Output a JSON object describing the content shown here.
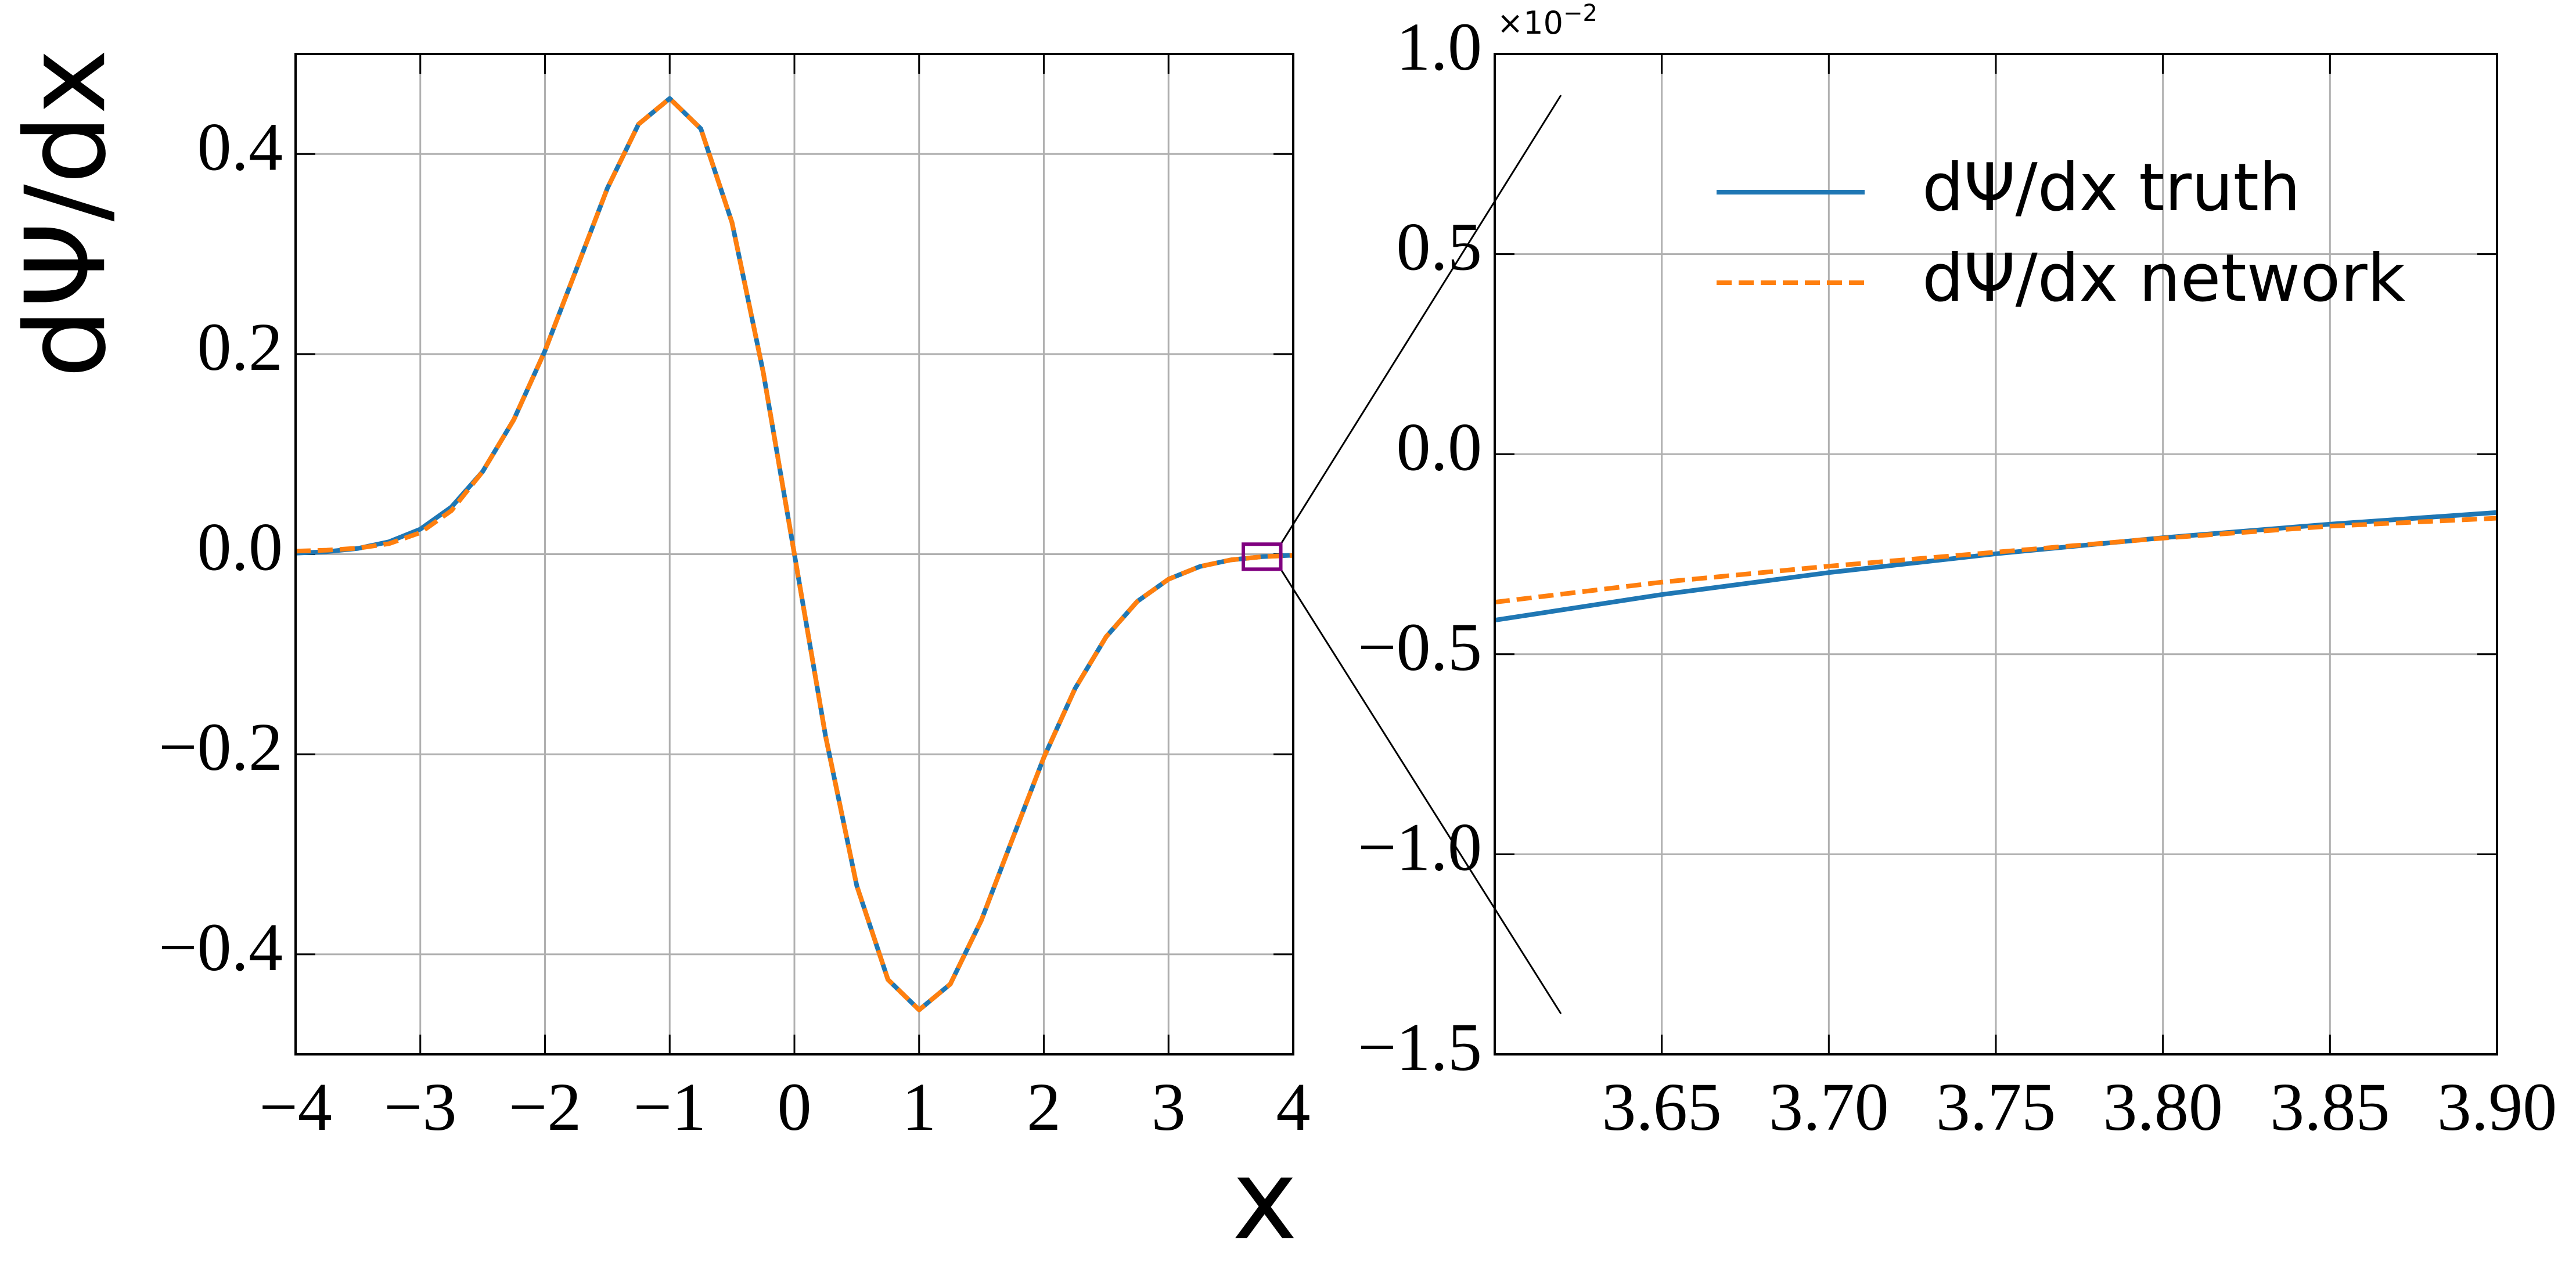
{
  "chart_data": [
    {
      "type": "line",
      "xlabel": "x",
      "ylabel": "dΨ/dx",
      "x": [
        -4,
        -3.75,
        -3.5,
        -3.25,
        -3,
        -2.75,
        -2.5,
        -2.25,
        -2,
        -1.75,
        -1.5,
        -1.25,
        -1,
        -0.75,
        -0.5,
        -0.25,
        0,
        0.25,
        0.5,
        0.75,
        1,
        1.25,
        1.5,
        1.75,
        2,
        2.25,
        2.5,
        2.75,
        3,
        3.25,
        3.5,
        3.75,
        4
      ],
      "series": [
        {
          "name": "dΨ/dx truth",
          "color": "#1f77b4",
          "dash": false,
          "values": [
            0.00101,
            0.00249,
            0.00575,
            0.01241,
            0.02503,
            0.0471,
            0.08251,
            0.13445,
            0.2033,
            0.28427,
            0.36578,
            0.42985,
            0.45556,
            0.42522,
            0.33145,
            0.182,
            0,
            -0.182,
            -0.33145,
            -0.42522,
            -0.45556,
            -0.42985,
            -0.36578,
            -0.28427,
            -0.2033,
            -0.13445,
            -0.08251,
            -0.0471,
            -0.02503,
            -0.01241,
            -0.00575,
            -0.00249,
            -0.00101
          ]
        },
        {
          "name": "dΨ/dx network",
          "color": "#ff7f0e",
          "dash": true,
          "values": [
            0.003,
            0.004,
            0.006,
            0.0105,
            0.0215,
            0.0435,
            0.08251,
            0.13445,
            0.2033,
            0.28427,
            0.36578,
            0.42985,
            0.45556,
            0.42522,
            0.33145,
            0.182,
            0,
            -0.182,
            -0.33145,
            -0.42522,
            -0.45556,
            -0.42985,
            -0.36578,
            -0.28427,
            -0.2033,
            -0.13445,
            -0.08251,
            -0.0471,
            -0.02503,
            -0.01241,
            -0.00575,
            -0.0025,
            -0.0013
          ]
        }
      ],
      "xlim": [
        -4,
        4
      ],
      "xticks": [
        {
          "value": -4,
          "label": "−4"
        },
        {
          "value": -3,
          "label": "−3"
        },
        {
          "value": -2,
          "label": "−2"
        },
        {
          "value": -1,
          "label": "−1"
        },
        0,
        1,
        2,
        3,
        4
      ],
      "ylim": [
        -0.5,
        0.5
      ],
      "yticks": [
        {
          "value": -0.4,
          "label": "−0.4"
        },
        {
          "value": -0.2,
          "label": "−0.2"
        },
        {
          "value": 0,
          "label": "0.0"
        },
        0.2,
        0.4
      ],
      "grid": true,
      "legend": false
    },
    {
      "type": "line",
      "x": [
        3.6,
        3.65,
        3.7,
        3.75,
        3.8,
        3.85,
        3.9
      ],
      "series": [
        {
          "name": "dΨ/dx truth",
          "color": "#1f77b4",
          "dash": false,
          "values": [
            -0.415,
            -0.351,
            -0.296,
            -0.249,
            -0.209,
            -0.175,
            -0.146
          ]
        },
        {
          "name": "dΨ/dx network",
          "color": "#ff7f0e",
          "dash": true,
          "values": [
            -0.37,
            -0.32,
            -0.28,
            -0.245,
            -0.21,
            -0.18,
            -0.16
          ]
        }
      ],
      "offset_text": {
        "base": "×10",
        "exponent": "−2"
      },
      "xlim": [
        3.6,
        3.9
      ],
      "xticks": [
        3.65,
        {
          "value": 3.7,
          "label": "3.70"
        },
        3.75,
        {
          "value": 3.8,
          "label": "3.80"
        },
        3.85,
        {
          "value": 3.9,
          "label": "3.90"
        }
      ],
      "ylim": [
        -1.5,
        1
      ],
      "yticks": [
        {
          "value": -1.5,
          "label": "−1.5"
        },
        {
          "value": -1,
          "label": "−1.0"
        },
        {
          "value": -0.5,
          "label": "−0.5"
        },
        {
          "value": 0,
          "label": "0.0"
        },
        0.5,
        {
          "value": 1,
          "label": "1.0"
        }
      ],
      "grid": true,
      "legend": "upper right"
    }
  ]
}
